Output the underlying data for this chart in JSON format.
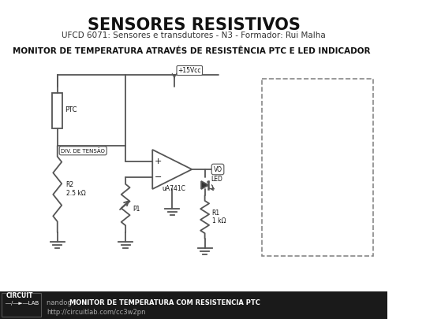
{
  "title": "SENSORES RESISTIVOS",
  "subtitle": "UFCD 6071: Sensores e transdutores - N3 - Formador: Rui Malha",
  "circuit_title": "MONITOR DE TEMPERATURA ATRAVÉS DE RESISTÊNCIA PTC E LED INDICADOR",
  "bg_color": "#ffffff",
  "line_color": "#555555",
  "footer_bg": "#1a1a1a",
  "footer_text_color": "#ffffff",
  "footer_label": "nandog / MONITOR DE TEMPERATURA COM RESISTENCIA PTC",
  "footer_url": "http://circuitlab.com/cc3w2pn",
  "circuit_lab_logo": "CIRCUIT\nLAB"
}
